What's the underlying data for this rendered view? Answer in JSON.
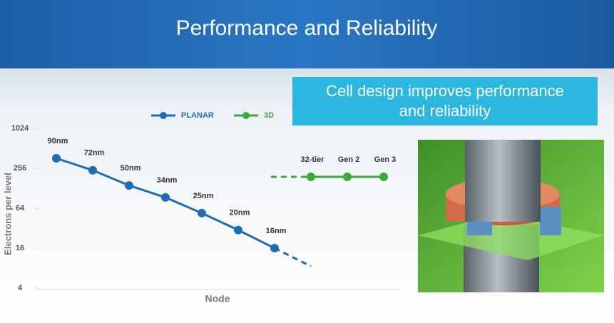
{
  "header": {
    "title": "Performance and Reliability"
  },
  "callout": {
    "text": "Cell design improves performance and reliability"
  },
  "chart_data": {
    "type": "line",
    "ylabel": "Electrons per level",
    "xlabel": "Node",
    "categories": [
      "90nm",
      "72nm",
      "50nm",
      "34nm",
      "25nm",
      "20nm",
      "16nm",
      "32-tier",
      "Gen 2",
      "Gen 3"
    ],
    "series": [
      {
        "name": "PLANAR",
        "color": "#1f6db5",
        "values": [
          362,
          239,
          141,
          93,
          54,
          30,
          16,
          null,
          null,
          null
        ]
      },
      {
        "name": "3D",
        "color": "#3aa83a",
        "values": [
          null,
          null,
          null,
          null,
          null,
          null,
          null,
          190,
          190,
          190
        ]
      }
    ],
    "ylim": [
      4,
      1024
    ],
    "yticks": [
      4,
      16,
      64,
      256,
      1024
    ],
    "log_scale": true,
    "grid": false,
    "legend": "top"
  }
}
